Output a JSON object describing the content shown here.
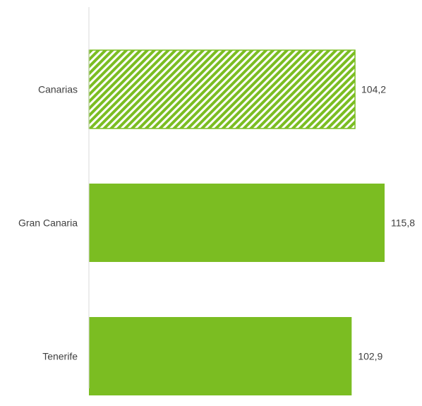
{
  "chart_data": {
    "type": "bar",
    "orientation": "horizontal",
    "title": "",
    "xlabel": "",
    "ylabel": "",
    "categories": [
      "Canarias",
      "Gran Canaria",
      "Tenerife"
    ],
    "values": [
      104.2,
      115.8,
      102.9
    ],
    "value_labels": [
      "104,2",
      "115,8",
      "102,9"
    ],
    "bar_styles": [
      "hatched",
      "solid",
      "solid"
    ],
    "xlim": [
      0,
      115.8
    ],
    "grid": false,
    "legend": "none",
    "colors": {
      "bar": "#7bbd22",
      "axis": "#d9d9d9",
      "text": "#404040",
      "background": "#ffffff"
    }
  }
}
